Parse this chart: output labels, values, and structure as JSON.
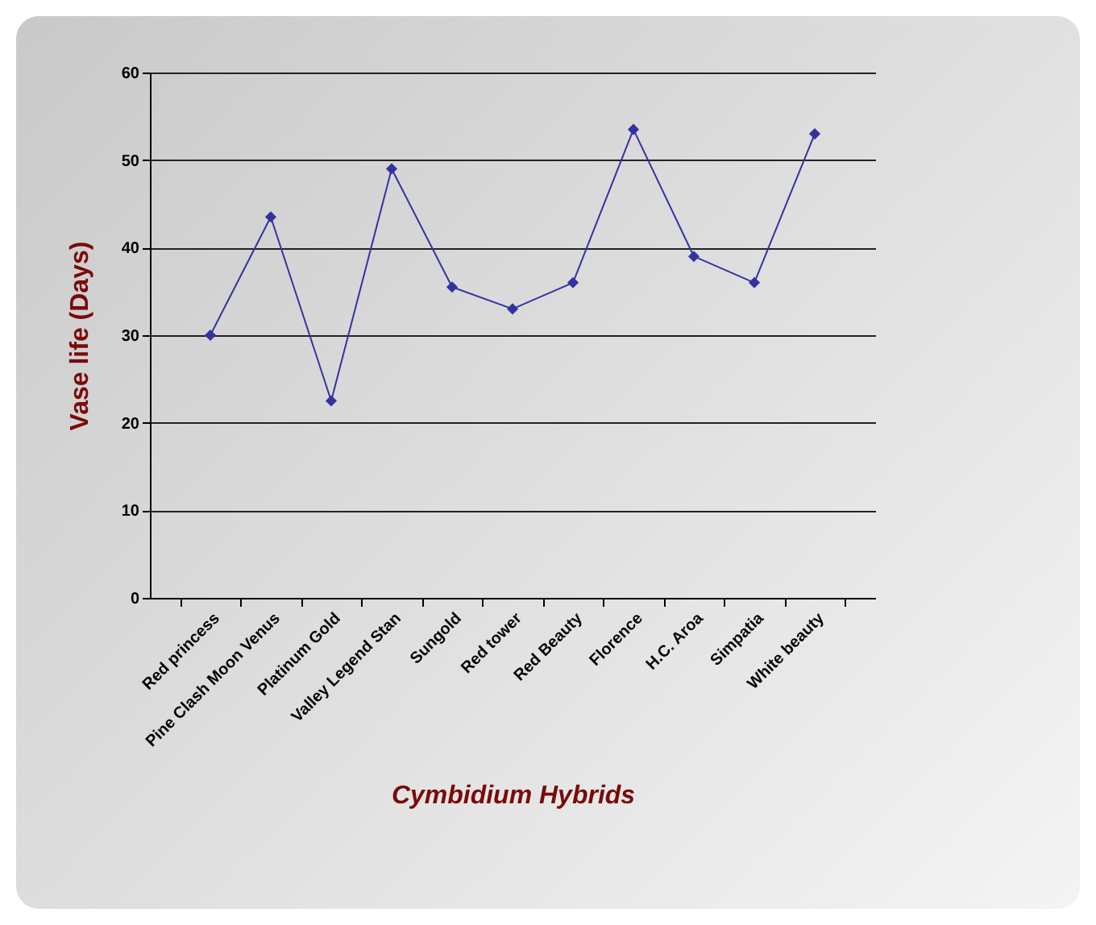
{
  "chart_data": {
    "type": "line",
    "xlabel": "Cymbidium Hybrids",
    "ylabel": "Vase life (Days)",
    "categories": [
      "Red princess",
      "Pine Clash Moon Venus",
      "Platinum Gold",
      "Valley Legend Stan",
      "Sungold",
      "Red tower",
      "Red Beauty",
      "Florence",
      "H.C. Aroa",
      "Simpatia",
      "White beauty"
    ],
    "series": [
      {
        "color": "#3333a0",
        "values": [
          30,
          43.5,
          22.5,
          49,
          35.5,
          33,
          36,
          53.5,
          39,
          36,
          53
        ]
      }
    ],
    "ylim": [
      0,
      60
    ],
    "yticks": [
      0,
      10,
      20,
      30,
      40,
      50,
      60
    ],
    "grid": "y",
    "marker": "diamond",
    "legend": false
  }
}
